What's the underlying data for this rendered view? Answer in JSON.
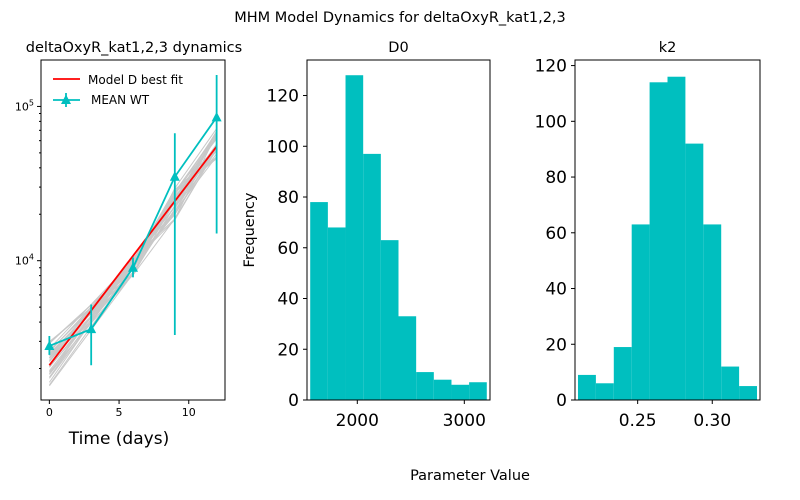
{
  "figure": {
    "suptitle": "MHM Model Dynamics for deltaOxyR_kat1,2,3",
    "supxlabel": "Parameter Value"
  },
  "colors": {
    "fit": "#ff0000",
    "mean": "#00bfbf",
    "ensemble": "#c8c8c8",
    "bars": "#00bfbf"
  },
  "chart_data": [
    {
      "type": "line",
      "title": "deltaOxyR_kat1,2,3 dynamics",
      "xlabel": "Time (days)",
      "ylabel": "",
      "yscale": "log",
      "xlim": [
        -0.6,
        12.6
      ],
      "ylim": [
        1250,
        200000
      ],
      "xticks": [
        0,
        5,
        10
      ],
      "yticks": [
        {
          "value": 10000,
          "base": "10",
          "exp": "4"
        },
        {
          "value": 100000,
          "base": "10",
          "exp": "5"
        }
      ],
      "legend": {
        "placement": "top-left",
        "entries": [
          " Model D best fit",
          "MEAN WT"
        ]
      },
      "series": [
        {
          "name": " Model D best fit",
          "kind": "line",
          "x": [
            0,
            12
          ],
          "y": [
            2100,
            55000
          ]
        },
        {
          "name": "MEAN WT",
          "kind": "errorbar",
          "x": [
            0,
            3,
            6,
            9,
            12
          ],
          "y": [
            2800,
            3600,
            9000,
            35000,
            85000
          ],
          "err_low": [
            2450,
            2100,
            7800,
            3300,
            15000
          ],
          "err_high": [
            3250,
            5200,
            10500,
            67000,
            160000
          ]
        }
      ],
      "ensemble": {
        "count": 30,
        "x": [
          0,
          6,
          9,
          12
        ],
        "y0_range": [
          1500,
          3000
        ],
        "y6_range": [
          8000,
          10500
        ],
        "y9_range": [
          18000,
          30000
        ],
        "y12_range": [
          45000,
          75000
        ]
      }
    },
    {
      "type": "bar",
      "title": "D0",
      "ylabel": "Frequency",
      "xlim": [
        1530,
        3240
      ],
      "ylim": [
        0,
        134
      ],
      "xticks": [
        2000,
        3000
      ],
      "yticks": [
        0,
        20,
        40,
        60,
        80,
        100,
        120
      ],
      "bin_edges": [
        1560,
        1725,
        1890,
        2055,
        2220,
        2385,
        2550,
        2715,
        2880,
        3045,
        3210
      ],
      "values": [
        78,
        68,
        128,
        97,
        63,
        33,
        11,
        8,
        6,
        7
      ]
    },
    {
      "type": "bar",
      "title": "k2",
      "ylabel": "",
      "xlim": [
        0.208,
        0.332
      ],
      "ylim": [
        0,
        122
      ],
      "xticks": [
        0.25,
        0.3
      ],
      "xtick_labels": [
        "0.25",
        "0.30"
      ],
      "yticks": [
        0,
        20,
        40,
        60,
        80,
        100,
        120
      ],
      "bin_edges": [
        0.21,
        0.222,
        0.234,
        0.246,
        0.258,
        0.27,
        0.282,
        0.294,
        0.306,
        0.318,
        0.33
      ],
      "values": [
        9,
        6,
        19,
        63,
        114,
        116,
        92,
        63,
        12,
        5
      ]
    }
  ]
}
